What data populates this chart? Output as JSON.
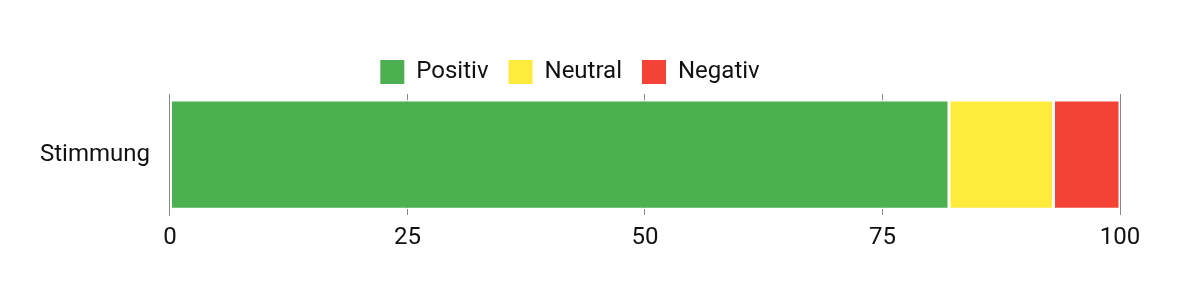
{
  "chart_data": {
    "type": "bar",
    "orientation": "horizontal",
    "stacked": true,
    "categories": [
      "Stimmung"
    ],
    "series": [
      {
        "name": "Positiv",
        "color": "#4caf50",
        "values": [
          82
        ]
      },
      {
        "name": "Neutral",
        "color": "#ffeb3b",
        "values": [
          11
        ]
      },
      {
        "name": "Negativ",
        "color": "#f44336",
        "values": [
          7
        ]
      }
    ],
    "xlim": [
      0,
      100
    ],
    "xticks": [
      0,
      25,
      50,
      75,
      100
    ],
    "grid": "x",
    "legend": "top"
  }
}
